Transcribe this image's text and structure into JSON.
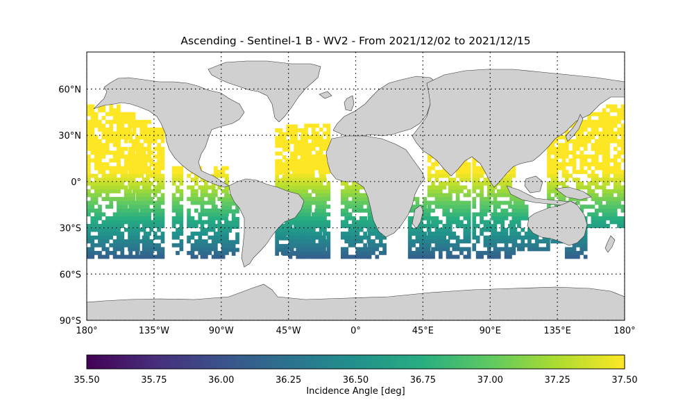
{
  "title": "Ascending - Sentinel-1 B - WV2 - From 2021/12/02 to 2021/12/15",
  "lat_ticks": [
    {
      "label": "60°N",
      "lat": 60
    },
    {
      "label": "30°N",
      "lat": 30
    },
    {
      "label": "0°",
      "lat": 0
    },
    {
      "label": "30°S",
      "lat": -30
    },
    {
      "label": "60°S",
      "lat": -60
    },
    {
      "label": "90°S",
      "lat": -90
    }
  ],
  "lon_ticks": [
    {
      "label": "180°",
      "lon": -180
    },
    {
      "label": "135°W",
      "lon": -135
    },
    {
      "label": "90°W",
      "lon": -90
    },
    {
      "label": "45°W",
      "lon": -45
    },
    {
      "label": "0°",
      "lon": 0
    },
    {
      "label": "45°E",
      "lon": 45
    },
    {
      "label": "90°E",
      "lon": 90
    },
    {
      "label": "135°E",
      "lon": 135
    },
    {
      "label": "180°",
      "lon": 180
    }
  ],
  "colorbar": {
    "label": "Incidence Angle [deg]",
    "min": 35.5,
    "max": 37.5,
    "colormap": "viridis",
    "ticks": [
      "35.50",
      "35.75",
      "36.00",
      "36.25",
      "36.50",
      "36.75",
      "37.00",
      "37.25",
      "37.50"
    ]
  },
  "chart_data": {
    "type": "heatmap",
    "projection": "equirectangular",
    "lon_range": [
      -180,
      180
    ],
    "lat_range": [
      -90,
      90
    ],
    "gridlines": "dotted, every 45° lon and 30° lat",
    "land_color": "#d0d0d0",
    "value_model": "incidence angle ≈ 36.1 + 0.025 × (lat + 50)",
    "swath_lat_extent": [
      -50,
      50
    ],
    "swaths": [
      {
        "lon_west": -180,
        "lon_east": -158,
        "lat_south": -50,
        "lat_north": 50
      },
      {
        "lon_west": -160,
        "lon_east": -145,
        "lat_south": -50,
        "lat_north": 43
      },
      {
        "lon_west": -152,
        "lon_east": -137,
        "lat_south": -50,
        "lat_north": 40
      },
      {
        "lon_west": -143,
        "lon_east": -130,
        "lat_south": -50,
        "lat_north": 35
      },
      {
        "lon_west": -123,
        "lon_east": -116,
        "lat_south": -50,
        "lat_north": 10
      },
      {
        "lon_west": -113,
        "lon_east": -104,
        "lat_south": -50,
        "lat_north": 8
      },
      {
        "lon_west": -104,
        "lon_east": -95,
        "lat_south": -50,
        "lat_north": 5
      },
      {
        "lon_west": -95,
        "lon_east": -85,
        "lat_south": -50,
        "lat_north": 10
      },
      {
        "lon_west": -88,
        "lon_east": -80,
        "lat_south": -48,
        "lat_north": -3
      },
      {
        "lon_west": -73,
        "lon_east": -67,
        "lat_south": -45,
        "lat_north": -20
      },
      {
        "lon_west": -54,
        "lon_east": -35,
        "lat_south": -48,
        "lat_north": 35
      },
      {
        "lon_west": -50,
        "lon_east": -20,
        "lat_south": -50,
        "lat_north": 15
      },
      {
        "lon_west": -37,
        "lon_east": -18,
        "lat_south": -50,
        "lat_north": 37
      },
      {
        "lon_west": -10,
        "lon_east": 8,
        "lat_south": -50,
        "lat_north": 3
      },
      {
        "lon_west": 8,
        "lon_east": 20,
        "lat_south": -50,
        "lat_north": -18
      },
      {
        "lon_west": 35,
        "lon_east": 50,
        "lat_south": -50,
        "lat_north": -12
      },
      {
        "lon_west": 48,
        "lon_east": 62,
        "lat_south": -50,
        "lat_north": 17
      },
      {
        "lon_west": 62,
        "lon_east": 75,
        "lat_south": -50,
        "lat_north": 18
      },
      {
        "lon_west": 78,
        "lon_east": 92,
        "lat_south": -50,
        "lat_north": 16
      },
      {
        "lon_west": 92,
        "lon_east": 105,
        "lat_south": -50,
        "lat_north": 8
      },
      {
        "lon_west": 103,
        "lon_east": 115,
        "lat_south": -45,
        "lat_north": -12
      },
      {
        "lon_west": 115,
        "lon_east": 128,
        "lat_south": -45,
        "lat_north": -30
      },
      {
        "lon_west": 128,
        "lon_east": 140,
        "lat_south": -40,
        "lat_north": 30
      },
      {
        "lon_west": 140,
        "lon_east": 155,
        "lat_south": -50,
        "lat_north": 40
      },
      {
        "lon_west": 155,
        "lon_east": 168,
        "lat_south": -30,
        "lat_north": 45
      },
      {
        "lon_west": 165,
        "lon_east": 180,
        "lat_south": -30,
        "lat_north": 50
      }
    ]
  }
}
